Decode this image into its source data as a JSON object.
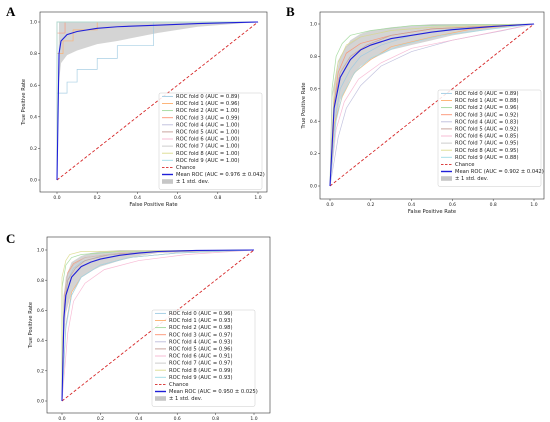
{
  "chart_data": [
    {
      "panel": "A",
      "type": "line",
      "xlabel": "False Positive Rate",
      "ylabel": "True Positive Rate",
      "xlim": [
        0,
        1
      ],
      "ylim": [
        0,
        1
      ],
      "xticks": [
        "0.0",
        "0.2",
        "0.4",
        "0.6",
        "0.8",
        "1.0"
      ],
      "yticks": [
        "0.0",
        "0.2",
        "0.4",
        "0.6",
        "0.8",
        "1.0"
      ],
      "grid": false,
      "legend_position": "lower-right",
      "series": [
        {
          "name": "ROC fold 0 (AUC = 0.89)",
          "color": "#9ecae1",
          "x": [
            0,
            0,
            0.05,
            0.05,
            0.1,
            0.1,
            0.2,
            0.2,
            0.3,
            0.3,
            0.48,
            0.48,
            1
          ],
          "y": [
            0,
            0.55,
            0.55,
            0.62,
            0.62,
            0.7,
            0.7,
            0.77,
            0.77,
            0.85,
            0.85,
            1,
            1
          ]
        },
        {
          "name": "ROC fold 1 (AUC = 0.96)",
          "color": "#fdae6b",
          "x": [
            0,
            0,
            0.03,
            0.03,
            0.08,
            0.08,
            0.2,
            0.2,
            1
          ],
          "y": [
            0,
            0.8,
            0.8,
            0.88,
            0.88,
            0.95,
            0.95,
            1,
            1
          ]
        },
        {
          "name": "ROC fold 2 (AUC = 1.00)",
          "color": "#a1d99b",
          "x": [
            0,
            0,
            1
          ],
          "y": [
            0,
            1,
            1
          ]
        },
        {
          "name": "ROC fold 3 (AUC = 0.99)",
          "color": "#fc9272",
          "x": [
            0,
            0,
            0.04,
            0.04,
            1
          ],
          "y": [
            0,
            0.93,
            0.93,
            1,
            1
          ]
        },
        {
          "name": "ROC fold 4 (AUC = 1.00)",
          "color": "#bcbddc",
          "x": [
            0,
            0,
            1
          ],
          "y": [
            0,
            1,
            1
          ]
        },
        {
          "name": "ROC fold 5 (AUC = 1.00)",
          "color": "#c49c94",
          "x": [
            0,
            0,
            1
          ],
          "y": [
            0,
            1,
            1
          ]
        },
        {
          "name": "ROC fold 6 (AUC = 1.00)",
          "color": "#f7b6d2",
          "x": [
            0,
            0,
            1
          ],
          "y": [
            0,
            1,
            1
          ]
        },
        {
          "name": "ROC fold 7 (AUC = 1.00)",
          "color": "#c7c7c7",
          "x": [
            0,
            0,
            1
          ],
          "y": [
            0,
            1,
            1
          ]
        },
        {
          "name": "ROC fold 8 (AUC = 1.00)",
          "color": "#dbdb8d",
          "x": [
            0,
            0,
            1
          ],
          "y": [
            0,
            1,
            1
          ]
        },
        {
          "name": "ROC fold 9 (AUC = 1.00)",
          "color": "#9edae5",
          "x": [
            0,
            0,
            1
          ],
          "y": [
            0,
            1,
            1
          ]
        }
      ],
      "chance": {
        "name": "Chance",
        "color": "#d62728",
        "x": [
          0,
          1
        ],
        "y": [
          0,
          1
        ]
      },
      "mean": {
        "name": "Mean ROC (AUC = 0.976 ± 0.042)",
        "color": "#1f1fd8",
        "x": [
          0,
          0.01,
          0.02,
          0.05,
          0.1,
          0.2,
          0.3,
          0.5,
          0.7,
          1.0
        ],
        "y": [
          0,
          0.8,
          0.88,
          0.92,
          0.94,
          0.96,
          0.97,
          0.98,
          0.99,
          1.0
        ]
      },
      "band": {
        "name": "± 1 std. dev.",
        "color": "#a0a0a0",
        "x": [
          0,
          0.01,
          0.02,
          0.05,
          0.1,
          0.2,
          0.3,
          0.5,
          0.7,
          1.0
        ],
        "upper": [
          0,
          1,
          1,
          1,
          1,
          1,
          1,
          1,
          1,
          1
        ],
        "lower": [
          0,
          0.62,
          0.74,
          0.79,
          0.82,
          0.86,
          0.88,
          0.93,
          0.97,
          1.0
        ]
      }
    },
    {
      "panel": "B",
      "type": "line",
      "xlabel": "False Positive Rate",
      "ylabel": "True Positive Rate",
      "xlim": [
        0,
        1
      ],
      "ylim": [
        0,
        1
      ],
      "xticks": [
        "0.0",
        "0.2",
        "0.4",
        "0.6",
        "0.8",
        "1.0"
      ],
      "yticks": [
        "0.0",
        "0.2",
        "0.4",
        "0.6",
        "0.8",
        "1.0"
      ],
      "grid": false,
      "legend_position": "lower-right",
      "series": [
        {
          "name": "ROC fold 0 (AUC = 0.89)",
          "color": "#9ecae1",
          "x": [
            0,
            0.03,
            0.05,
            0.1,
            0.15,
            0.25,
            0.4,
            0.6,
            1
          ],
          "y": [
            0,
            0.45,
            0.6,
            0.72,
            0.8,
            0.87,
            0.93,
            0.97,
            1
          ]
        },
        {
          "name": "ROC fold 1 (AUC = 0.88)",
          "color": "#fdae6b",
          "x": [
            0,
            0.02,
            0.06,
            0.12,
            0.2,
            0.3,
            0.5,
            0.7,
            1
          ],
          "y": [
            0,
            0.38,
            0.55,
            0.7,
            0.78,
            0.86,
            0.92,
            0.97,
            1
          ]
        },
        {
          "name": "ROC fold 2 (AUC = 0.96)",
          "color": "#a1d99b",
          "x": [
            0,
            0.01,
            0.03,
            0.06,
            0.1,
            0.2,
            0.4,
            1
          ],
          "y": [
            0,
            0.6,
            0.8,
            0.88,
            0.93,
            0.96,
            0.99,
            1
          ]
        },
        {
          "name": "ROC fold 3 (AUC = 0.92)",
          "color": "#fc9272",
          "x": [
            0,
            0.02,
            0.04,
            0.08,
            0.15,
            0.3,
            0.5,
            1
          ],
          "y": [
            0,
            0.5,
            0.7,
            0.82,
            0.88,
            0.93,
            0.97,
            1
          ]
        },
        {
          "name": "ROC fold 4 (AUC = 0.83)",
          "color": "#bcbddc",
          "x": [
            0,
            0.04,
            0.08,
            0.15,
            0.25,
            0.4,
            0.6,
            0.85,
            1
          ],
          "y": [
            0,
            0.3,
            0.48,
            0.62,
            0.74,
            0.83,
            0.9,
            0.96,
            1
          ]
        },
        {
          "name": "ROC fold 5 (AUC = 0.92)",
          "color": "#c49c94",
          "x": [
            0,
            0.02,
            0.05,
            0.1,
            0.18,
            0.3,
            0.5,
            1
          ],
          "y": [
            0,
            0.52,
            0.7,
            0.8,
            0.87,
            0.93,
            0.97,
            1
          ]
        },
        {
          "name": "ROC fold 6 (AUC = 0.85)",
          "color": "#f7b6d2",
          "x": [
            0,
            0.03,
            0.07,
            0.14,
            0.25,
            0.4,
            0.6,
            0.8,
            1
          ],
          "y": [
            0,
            0.35,
            0.52,
            0.66,
            0.76,
            0.85,
            0.9,
            0.95,
            1
          ]
        },
        {
          "name": "ROC fold 7 (AUC = 0.95)",
          "color": "#c7c7c7",
          "x": [
            0,
            0.01,
            0.04,
            0.08,
            0.15,
            0.3,
            0.5,
            1
          ],
          "y": [
            0,
            0.55,
            0.77,
            0.86,
            0.92,
            0.96,
            0.98,
            1
          ]
        },
        {
          "name": "ROC fold 8 (AUC = 0.95)",
          "color": "#dbdb8d",
          "x": [
            0,
            0.02,
            0.04,
            0.08,
            0.15,
            0.3,
            0.5,
            1
          ],
          "y": [
            0,
            0.6,
            0.76,
            0.87,
            0.92,
            0.96,
            0.98,
            1
          ]
        },
        {
          "name": "ROC fold 9 (AUC = 0.88)",
          "color": "#9edae5",
          "x": [
            0,
            0.03,
            0.06,
            0.12,
            0.2,
            0.35,
            0.55,
            0.8,
            1
          ],
          "y": [
            0,
            0.4,
            0.56,
            0.7,
            0.79,
            0.87,
            0.93,
            0.97,
            1
          ]
        }
      ],
      "chance": {
        "name": "Chance",
        "color": "#d62728",
        "x": [
          0,
          1
        ],
        "y": [
          0,
          1
        ]
      },
      "mean": {
        "name": "Mean ROC (AUC = 0.902 ± 0.042)",
        "color": "#1f1fd8",
        "x": [
          0,
          0.02,
          0.05,
          0.1,
          0.15,
          0.2,
          0.3,
          0.4,
          0.5,
          0.6,
          0.8,
          1.0
        ],
        "y": [
          0,
          0.48,
          0.67,
          0.78,
          0.84,
          0.87,
          0.91,
          0.93,
          0.95,
          0.965,
          0.985,
          1.0
        ]
      },
      "band": {
        "name": "± 1 std. dev.",
        "color": "#a0a0a0",
        "x": [
          0,
          0.02,
          0.05,
          0.1,
          0.15,
          0.2,
          0.3,
          0.4,
          0.5,
          0.6,
          0.8,
          1.0
        ],
        "upper": [
          0,
          0.62,
          0.8,
          0.9,
          0.94,
          0.96,
          0.98,
          0.99,
          1,
          1,
          1,
          1
        ],
        "lower": [
          0,
          0.33,
          0.53,
          0.66,
          0.74,
          0.78,
          0.84,
          0.87,
          0.9,
          0.93,
          0.97,
          1.0
        ]
      }
    },
    {
      "panel": "C",
      "type": "line",
      "xlabel": "False Positive Rate",
      "ylabel": "True Positive Rate",
      "xlim": [
        0,
        1
      ],
      "ylim": [
        0,
        1
      ],
      "xticks": [
        "0.0",
        "0.2",
        "0.4",
        "0.6",
        "0.8",
        "1.0"
      ],
      "yticks": [
        "0.0",
        "0.2",
        "0.4",
        "0.6",
        "0.8",
        "1.0"
      ],
      "grid": false,
      "legend_position": "lower-right",
      "series": [
        {
          "name": "ROC fold 0 (AUC = 0.96)",
          "color": "#9ecae1",
          "x": [
            0,
            0.01,
            0.03,
            0.06,
            0.1,
            0.2,
            0.4,
            1
          ],
          "y": [
            0,
            0.6,
            0.8,
            0.88,
            0.92,
            0.96,
            0.99,
            1
          ]
        },
        {
          "name": "ROC fold 1 (AUC = 0.93)",
          "color": "#fdae6b",
          "x": [
            0,
            0.02,
            0.05,
            0.1,
            0.2,
            0.35,
            0.6,
            1
          ],
          "y": [
            0,
            0.5,
            0.72,
            0.82,
            0.9,
            0.95,
            0.98,
            1
          ]
        },
        {
          "name": "ROC fold 2 (AUC = 0.98)",
          "color": "#a1d99b",
          "x": [
            0,
            0,
            0.02,
            0.05,
            0.1,
            0.3,
            1
          ],
          "y": [
            0,
            0.75,
            0.9,
            0.95,
            0.97,
            0.99,
            1
          ]
        },
        {
          "name": "ROC fold 3 (AUC = 0.97)",
          "color": "#fc9272",
          "x": [
            0,
            0.01,
            0.03,
            0.06,
            0.12,
            0.3,
            1
          ],
          "y": [
            0,
            0.68,
            0.85,
            0.91,
            0.95,
            0.98,
            1
          ]
        },
        {
          "name": "ROC fold 4 (AUC = 0.93)",
          "color": "#bcbddc",
          "x": [
            0,
            0.02,
            0.05,
            0.1,
            0.2,
            0.35,
            0.6,
            1
          ],
          "y": [
            0,
            0.5,
            0.7,
            0.82,
            0.9,
            0.95,
            0.98,
            1
          ]
        },
        {
          "name": "ROC fold 5 (AUC = 0.96)",
          "color": "#c49c94",
          "x": [
            0,
            0.01,
            0.03,
            0.07,
            0.12,
            0.25,
            0.5,
            1
          ],
          "y": [
            0,
            0.62,
            0.8,
            0.88,
            0.93,
            0.97,
            0.99,
            1
          ]
        },
        {
          "name": "ROC fold 6 (AUC = 0.91)",
          "color": "#f7b6d2",
          "x": [
            0,
            0.03,
            0.06,
            0.12,
            0.22,
            0.4,
            0.65,
            1
          ],
          "y": [
            0,
            0.45,
            0.66,
            0.78,
            0.87,
            0.93,
            0.97,
            1
          ]
        },
        {
          "name": "ROC fold 7 (AUC = 0.97)",
          "color": "#c7c7c7",
          "x": [
            0,
            0.01,
            0.03,
            0.06,
            0.12,
            0.3,
            1
          ],
          "y": [
            0,
            0.7,
            0.84,
            0.9,
            0.95,
            0.98,
            1
          ]
        },
        {
          "name": "ROC fold 8 (AUC = 0.99)",
          "color": "#dbdb8d",
          "x": [
            0,
            0,
            0.02,
            0.04,
            0.1,
            1
          ],
          "y": [
            0,
            0.82,
            0.93,
            0.97,
            0.99,
            1
          ]
        },
        {
          "name": "ROC fold 9 (AUC = 0.93)",
          "color": "#9edae5",
          "x": [
            0,
            0.02,
            0.05,
            0.1,
            0.2,
            0.35,
            0.6,
            1
          ],
          "y": [
            0,
            0.48,
            0.7,
            0.82,
            0.9,
            0.95,
            0.98,
            1
          ]
        }
      ],
      "chance": {
        "name": "Chance",
        "color": "#d62728",
        "x": [
          0,
          1
        ],
        "y": [
          0,
          1
        ]
      },
      "mean": {
        "name": "Mean ROC (AUC = 0.950 ± 0.025)",
        "color": "#1f1fd8",
        "x": [
          0,
          0.01,
          0.02,
          0.05,
          0.1,
          0.15,
          0.2,
          0.3,
          0.4,
          0.5,
          0.7,
          1.0
        ],
        "y": [
          0,
          0.55,
          0.7,
          0.82,
          0.89,
          0.92,
          0.94,
          0.965,
          0.98,
          0.99,
          0.997,
          1.0
        ]
      },
      "band": {
        "name": "± 1 std. dev.",
        "color": "#a0a0a0",
        "x": [
          0,
          0.01,
          0.02,
          0.05,
          0.1,
          0.15,
          0.2,
          0.3,
          0.4,
          0.5,
          0.7,
          1.0
        ],
        "upper": [
          0,
          0.7,
          0.82,
          0.92,
          0.96,
          0.98,
          0.99,
          1,
          1,
          1,
          1,
          1
        ],
        "lower": [
          0,
          0.4,
          0.58,
          0.72,
          0.82,
          0.86,
          0.89,
          0.93,
          0.96,
          0.98,
          0.99,
          1.0
        ]
      }
    }
  ]
}
